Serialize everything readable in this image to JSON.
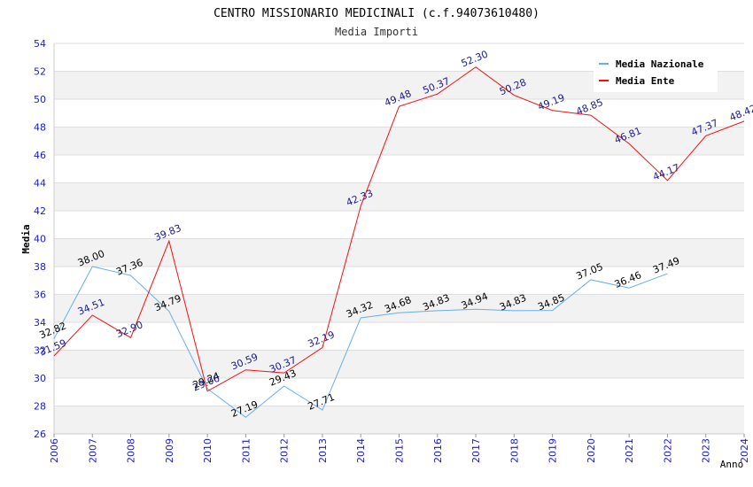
{
  "chart_data": {
    "type": "line",
    "title": "CENTRO MISSIONARIO MEDICINALI (c.f.94073610480)",
    "subtitle": "Media Importi",
    "xlabel": "Anno",
    "ylabel": "Media",
    "ylim": [
      26,
      54
    ],
    "yticks": [
      "26",
      "28",
      "30",
      "32",
      "34",
      "36",
      "38",
      "40",
      "42",
      "44",
      "46",
      "48",
      "50",
      "52",
      "54"
    ],
    "categories": [
      "2006",
      "2007",
      "2008",
      "2009",
      "2010",
      "2011",
      "2012",
      "2013",
      "2014",
      "2015",
      "2016",
      "2017",
      "2018",
      "2019",
      "2020",
      "2021",
      "2022",
      "2023",
      "2024"
    ],
    "grid": "horizontal bands",
    "legend_position": "top-right",
    "series": [
      {
        "name": "Media Nazionale",
        "color": "#6aaee8",
        "label_color": "#000000",
        "values": [
          32.82,
          38.0,
          37.36,
          34.79,
          29.24,
          27.19,
          29.43,
          27.71,
          34.32,
          34.68,
          34.83,
          34.94,
          34.83,
          34.85,
          37.05,
          36.46,
          37.49,
          null,
          null
        ],
        "labels": [
          "32.82",
          "38.00",
          "37.36",
          "34.79",
          "29.24",
          "27.19",
          "29.43",
          "27.71",
          "34.32",
          "34.68",
          "34.83",
          "34.94",
          "34.83",
          "34.85",
          "37.05",
          "36.46",
          "37.49",
          null,
          null
        ]
      },
      {
        "name": "Media Ente",
        "color": "#ee1111",
        "label_color": "#1a1a8c",
        "values": [
          31.59,
          34.51,
          32.9,
          39.83,
          29.06,
          30.59,
          30.37,
          32.19,
          42.33,
          49.48,
          50.37,
          52.3,
          50.28,
          49.19,
          48.85,
          46.81,
          44.17,
          47.37,
          48.42
        ],
        "labels": [
          "31.59",
          "34.51",
          "32.90",
          "39.83",
          "29.06",
          "30.59",
          "30.37",
          "32.19",
          "42.33",
          "49.48",
          "50.37",
          "52.30",
          "50.28",
          "49.19",
          "48.85",
          "46.81",
          "44.17",
          "47.37",
          "48.42"
        ]
      }
    ]
  }
}
